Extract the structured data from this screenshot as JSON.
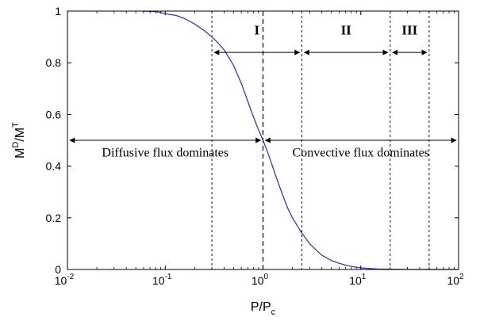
{
  "chart_data": {
    "type": "line",
    "x_scale": "log",
    "xlim": [
      0.01,
      100
    ],
    "ylim": [
      0,
      1
    ],
    "grid": false,
    "x_ticks": [
      {
        "value": 0.01,
        "base": "10",
        "exp": "-2"
      },
      {
        "value": 0.1,
        "base": "10",
        "exp": "-1"
      },
      {
        "value": 1,
        "base": "10",
        "exp": "0"
      },
      {
        "value": 10,
        "base": "10",
        "exp": "1"
      },
      {
        "value": 100,
        "base": "10",
        "exp": "2"
      }
    ],
    "y_ticks": [
      {
        "value": 0,
        "label": "0"
      },
      {
        "value": 0.2,
        "label": "0.2"
      },
      {
        "value": 0.4,
        "label": "0.4"
      },
      {
        "value": 0.6,
        "label": "0.6"
      },
      {
        "value": 0.8,
        "label": "0.8"
      },
      {
        "value": 1,
        "label": "1"
      }
    ],
    "xlabel": {
      "main": "P/P",
      "sub": "c"
    },
    "ylabel": {
      "main": "M",
      "sup1": "D",
      "mid": "/M",
      "sup2": "T"
    },
    "series": [
      {
        "color": "#3a3aa8",
        "x": [
          0.06,
          0.08,
          0.1,
          0.13,
          0.16,
          0.2,
          0.25,
          0.3,
          0.35,
          0.4,
          0.5,
          0.6,
          0.7,
          0.8,
          0.9,
          1.0,
          1.1,
          1.25,
          1.4,
          1.6,
          1.8,
          2.0,
          2.5,
          3.0,
          3.5,
          4.0,
          5.0,
          6.0,
          7.0,
          8.0,
          10,
          12,
          15,
          20,
          30,
          50,
          100
        ],
        "y": [
          1.0,
          0.998,
          0.99,
          0.983,
          0.97,
          0.95,
          0.925,
          0.9,
          0.875,
          0.85,
          0.79,
          0.72,
          0.65,
          0.59,
          0.54,
          0.5,
          0.46,
          0.4,
          0.345,
          0.285,
          0.235,
          0.2,
          0.14,
          0.1,
          0.075,
          0.055,
          0.035,
          0.024,
          0.017,
          0.012,
          0.006,
          0.004,
          0.002,
          0.001,
          0.0005,
          0.0002,
          0.0001
        ]
      }
    ],
    "reference_lines": [
      {
        "x": 0.3,
        "style": "dotted"
      },
      {
        "x": 1.0,
        "style": "dashed"
      },
      {
        "x": 2.5,
        "style": "dotted"
      },
      {
        "x": 20,
        "style": "dotted"
      },
      {
        "x": 50,
        "style": "dotted"
      }
    ],
    "range_arrows": [
      {
        "x1": 0.01,
        "x2": 1.0,
        "y": 0.5
      },
      {
        "x1": 1.0,
        "x2": 100,
        "y": 0.5
      },
      {
        "x1": 0.3,
        "x2": 2.5,
        "y": 0.84
      },
      {
        "x1": 2.5,
        "x2": 20,
        "y": 0.84
      },
      {
        "x1": 20,
        "x2": 50,
        "y": 0.84
      }
    ],
    "region_labels": [
      {
        "text": "I",
        "x": 0.866,
        "y": 0.91
      },
      {
        "text": "II",
        "x": 7.07,
        "y": 0.91
      },
      {
        "text": "III",
        "x": 31.6,
        "y": 0.91
      }
    ],
    "annotations": [
      {
        "text": "Diffusive flux dominates",
        "x": 0.1,
        "y": 0.455
      },
      {
        "text": "Convective flux dominates",
        "x": 10,
        "y": 0.455
      }
    ]
  }
}
